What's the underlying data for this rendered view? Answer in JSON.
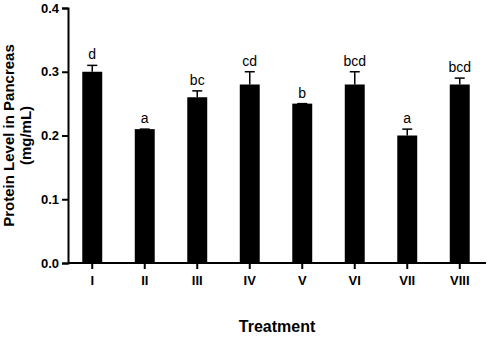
{
  "chart_data": {
    "type": "bar",
    "x_label": "Treatment",
    "y_label": [
      "Protein Level in Pancreas",
      "(mg/mL)"
    ],
    "categories": [
      "I",
      "II",
      "III",
      "IV",
      "V",
      "VI",
      "VII",
      "VIII"
    ],
    "values": [
      0.3,
      0.21,
      0.26,
      0.28,
      0.25,
      0.28,
      0.2,
      0.28
    ],
    "errors": [
      0.01,
      0,
      0.01,
      0.02,
      0,
      0.02,
      0.01,
      0.01
    ],
    "annotations": [
      "d",
      "a",
      "bc",
      "cd",
      "b",
      "bcd",
      "a",
      "bcd"
    ],
    "color": "#000000",
    "ylim": [
      0,
      0.4
    ],
    "yticks": [
      {
        "value": 0,
        "label": "0.0"
      },
      0.1,
      0.2,
      0.3,
      0.4
    ],
    "grid": false
  }
}
